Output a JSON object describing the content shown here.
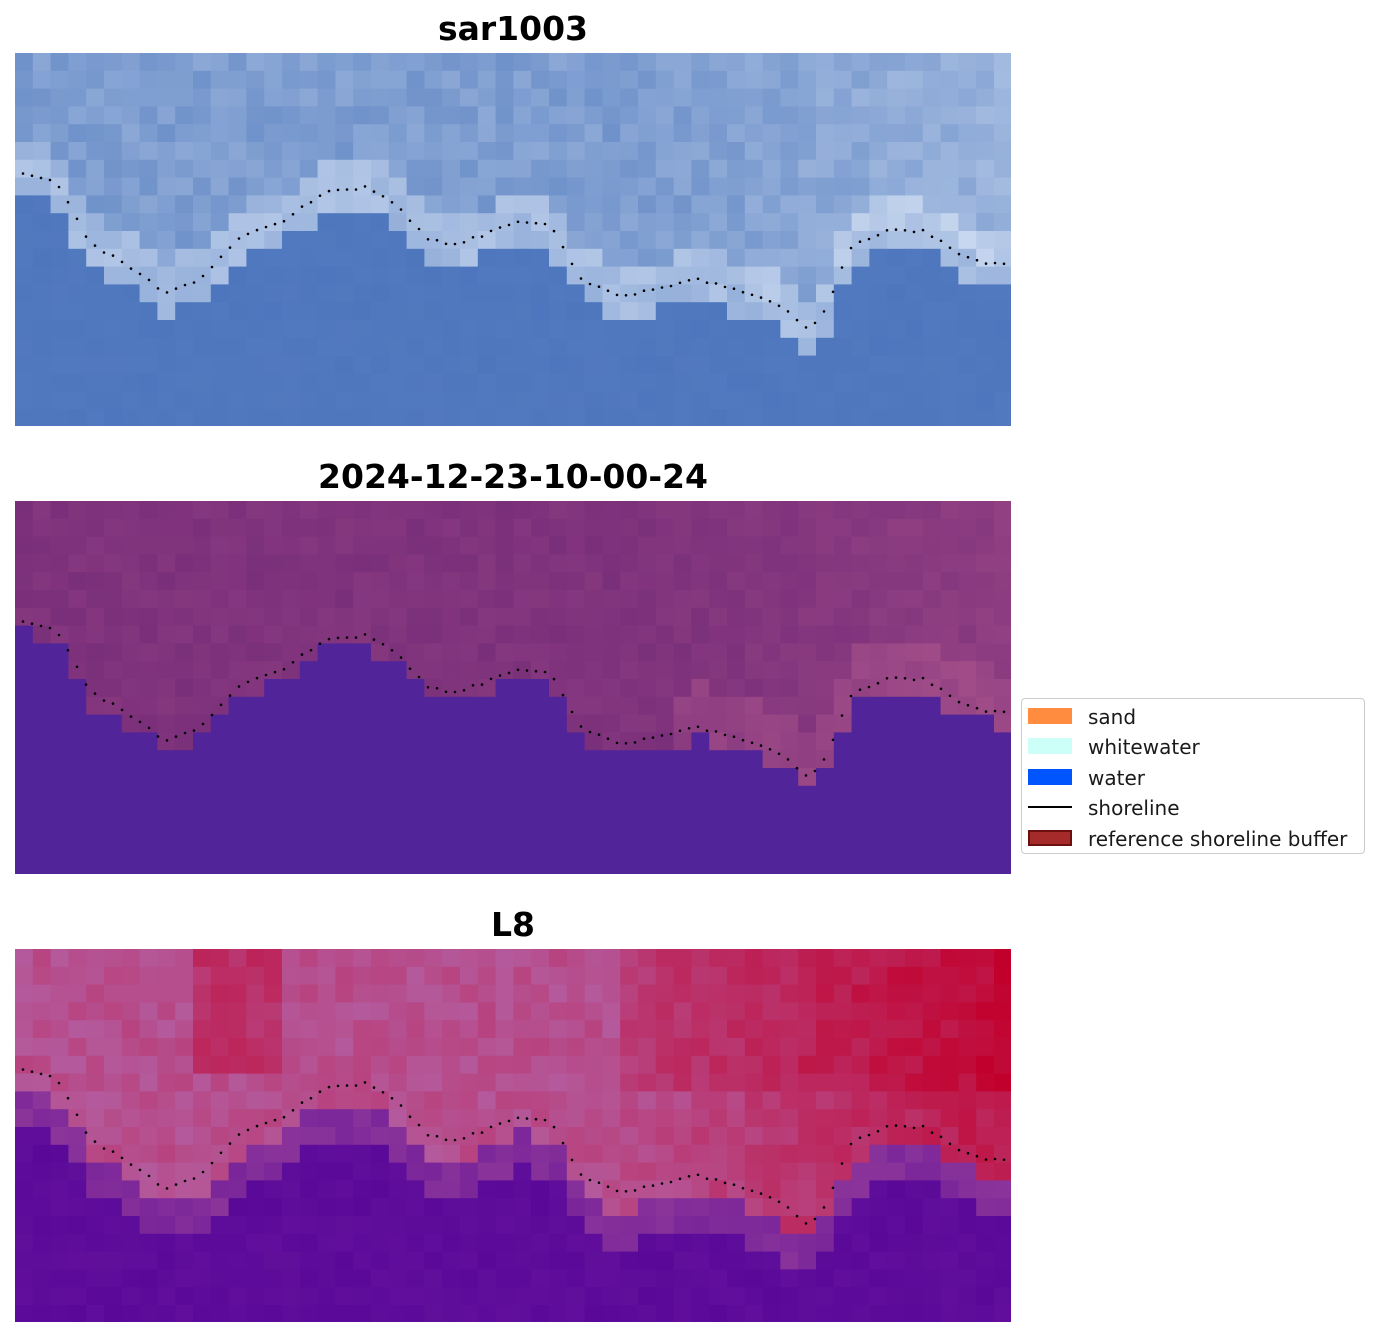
{
  "panels": [
    {
      "title": "sar1003",
      "style": "sar"
    },
    {
      "title": "2024-12-23-10-00-24",
      "style": "classified"
    },
    {
      "title": "L8",
      "style": "index"
    }
  ],
  "legend": [
    {
      "label": "sand",
      "color": "#ff8c3f",
      "kind": "patch"
    },
    {
      "label": "whitewater",
      "color": "#ccfff7",
      "kind": "patch"
    },
    {
      "label": "water",
      "color": "#0055ff",
      "kind": "patch"
    },
    {
      "label": "shoreline",
      "color": "#000000",
      "kind": "line"
    },
    {
      "label": "reference shoreline buffer",
      "color": "#a52a2a",
      "kind": "patch-outlined"
    }
  ],
  "colors": {
    "sar_water": "#4a73bc",
    "sar_land": "#6a8ec8",
    "sar_bright": "#d8e4f6",
    "classified_water": "#52249a",
    "classified_land": "#7a2f7a",
    "classified_land_light": "#b0588e",
    "index_water": "#5a0898",
    "index_land": "#b45a9c",
    "index_hot": "#c2002c",
    "shoreline_dots": "#000000"
  }
}
